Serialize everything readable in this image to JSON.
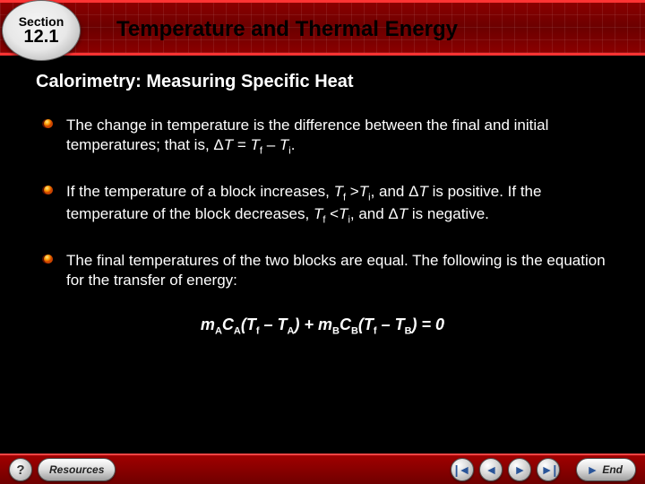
{
  "header": {
    "section_label": "Section",
    "section_number": "12.1",
    "title": "Temperature and Thermal Energy"
  },
  "subtitle": "Calorimetry: Measuring Specific Heat",
  "bullets": [
    "The change in temperature is the difference between the final and initial temperatures; that is, Δ<i>T</i> = <i>T</i><sub>f</sub> – <i>T</i><sub>i</sub>.",
    "If the temperature of a block increases, <i>T</i><sub>f</sub> &gt;<i>T</i><sub>i</sub>, and Δ<i>T</i> is positive. If the temperature of the block decreases, <i>T</i><sub>f</sub> &lt;<i>T</i><sub>i</sub>, and Δ<i>T</i> is negative.",
    "The final temperatures of the two blocks are equal. The following is the equation for the transfer of energy:"
  ],
  "equation": "m<sub>A</sub>C<sub>A</sub>(T<sub>f</sub> – T<sub>A</sub>) + m<sub>B</sub>C<sub>B</sub>(T<sub>f</sub> – T<sub>B</sub>) = 0",
  "nav": {
    "help": "?",
    "resources": "Resources",
    "end": "End"
  },
  "style": {
    "header_bg_dark": "#6b0000",
    "header_bg_light": "#8b0000",
    "accent_red": "#ff3333",
    "text_color": "#ffffff",
    "bullet_orange": "#ff6600",
    "bullet_yellow": "#ffcc00",
    "badge_light": "#f5f5f5",
    "badge_dark": "#999999",
    "nav_arrow_blue": "#2a5599",
    "body_bg": "#000000"
  }
}
